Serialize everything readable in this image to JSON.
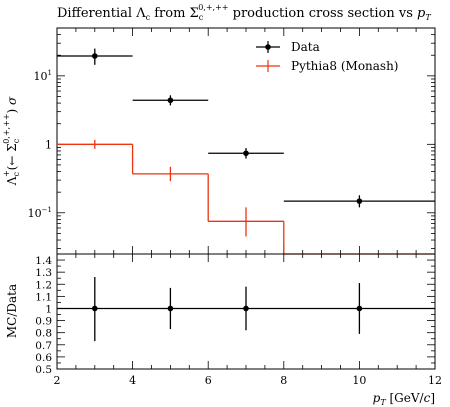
{
  "chart_data": {
    "type": "line",
    "title": "Differential Λc from Σc0,+,++ production cross section vs pT",
    "title_parts": {
      "lead": "Differential Λ",
      "lead_sub": "c",
      "mid": " from Σ",
      "mid_sub": "c",
      "mid_sup": "0,+,++",
      "tail": " production cross section vs ",
      "tail_var": "p",
      "tail_sub": "T"
    },
    "main": {
      "ylabel": "Λc+(← Σc0,+,++) σ",
      "yscale": "log",
      "ylim": [
        0.025,
        50
      ],
      "xlim": [
        2,
        12
      ],
      "ytick_labels": [
        {
          "value": 10,
          "label": "10",
          "sup": "1"
        },
        {
          "value": 1,
          "label": "1",
          "sup": ""
        },
        {
          "value": 0.1,
          "label": "10",
          "sup": "−1"
        }
      ],
      "series": [
        {
          "name": "Data",
          "style": "points",
          "color": "#000000",
          "points": [
            {
              "xlow": 2,
              "xhigh": 4,
              "x": 3,
              "y": 19.5,
              "ylow": 14.5,
              "yhigh": 25
            },
            {
              "xlow": 4,
              "xhigh": 6,
              "x": 5,
              "y": 4.4,
              "ylow": 3.7,
              "yhigh": 5.2
            },
            {
              "xlow": 6,
              "xhigh": 8,
              "x": 7,
              "y": 0.74,
              "ylow": 0.62,
              "yhigh": 0.88
            },
            {
              "xlow": 8,
              "xhigh": 12,
              "x": 10,
              "y": 0.148,
              "ylow": 0.12,
              "yhigh": 0.18
            }
          ]
        },
        {
          "name": "Pythia8 (Monash)",
          "style": "histogram",
          "color": "#ee3311",
          "points": [
            {
              "xlow": 2,
              "xhigh": 4,
              "x": 3,
              "y": 1.0,
              "ylow": 0.86,
              "yhigh": 1.16
            },
            {
              "xlow": 4,
              "xhigh": 6,
              "x": 5,
              "y": 0.37,
              "ylow": 0.29,
              "yhigh": 0.47
            },
            {
              "xlow": 6,
              "xhigh": 8,
              "x": 7,
              "y": 0.075,
              "ylow": 0.045,
              "yhigh": 0.12
            },
            {
              "xlow": 8,
              "xhigh": 12,
              "x": 10,
              "y": 0.005,
              "ylow": 0.003,
              "yhigh": 0.026
            }
          ]
        }
      ]
    },
    "ratio": {
      "ylabel": "MC/Data",
      "ylim": [
        0.5,
        1.45
      ],
      "yticks": [
        0.5,
        0.6,
        0.7,
        0.8,
        0.9,
        1,
        1.1,
        1.2,
        1.3,
        1.4
      ],
      "ytick_labels": [
        "0.5",
        "0.6",
        "0.7",
        "0.8",
        "0.9",
        "1",
        "1.1",
        "1.2",
        "1.3",
        "1.4"
      ],
      "series": [
        {
          "name": "Data",
          "color": "#000000",
          "points": [
            {
              "xlow": 2,
              "xhigh": 4,
              "x": 3,
              "y": 1.0,
              "ylow": 0.73,
              "yhigh": 1.26
            },
            {
              "xlow": 4,
              "xhigh": 6,
              "x": 5,
              "y": 1.0,
              "ylow": 0.83,
              "yhigh": 1.17
            },
            {
              "xlow": 6,
              "xhigh": 8,
              "x": 7,
              "y": 1.0,
              "ylow": 0.82,
              "yhigh": 1.18
            },
            {
              "xlow": 8,
              "xhigh": 12,
              "x": 10,
              "y": 1.0,
              "ylow": 0.79,
              "yhigh": 1.21
            }
          ]
        }
      ]
    },
    "xaxis": {
      "xlabel": "pT [GeV/c]",
      "xlabel_parts": {
        "var": "p",
        "sub": "T",
        "unit": " [GeV/",
        "unit_c": "c",
        "close": "]"
      },
      "xticks": [
        2,
        4,
        6,
        8,
        10,
        12
      ],
      "xtick_labels": [
        "2",
        "4",
        "6",
        "8",
        "10",
        "12"
      ]
    },
    "legend": {
      "placement": "top-right",
      "entries": [
        "Data",
        "Pythia8 (Monash)"
      ]
    }
  }
}
